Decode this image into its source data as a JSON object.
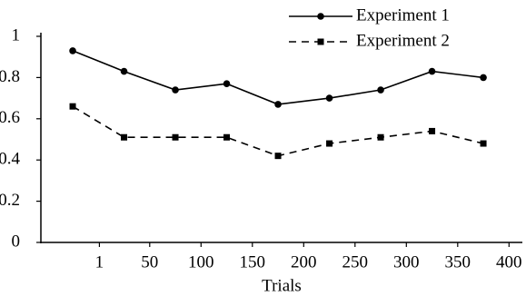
{
  "chart_data": {
    "type": "line",
    "x_label": "Trials",
    "x": [
      -25,
      25,
      75,
      125,
      175,
      225,
      275,
      325,
      375
    ],
    "series": [
      {
        "name": "Experiment 1",
        "color": "#000000",
        "line_style": "solid",
        "marker": "circle",
        "values": [
          0.93,
          0.83,
          0.74,
          0.77,
          0.67,
          0.7,
          0.74,
          0.83,
          0.8
        ]
      },
      {
        "name": "Experiment 2",
        "color": "#000000",
        "line_style": "dashed",
        "marker": "square",
        "values": [
          0.66,
          0.51,
          0.51,
          0.51,
          0.42,
          0.48,
          0.51,
          0.54,
          0.48
        ]
      }
    ],
    "xlim": [
      -56,
      413
    ],
    "xticks": [
      1,
      50,
      100,
      150,
      200,
      250,
      300,
      350,
      400
    ],
    "ylim": [
      0,
      1
    ],
    "yticks": [
      0,
      0.2,
      0.4,
      0.6,
      0.8,
      1
    ],
    "grid": false,
    "legend": "top-right"
  }
}
